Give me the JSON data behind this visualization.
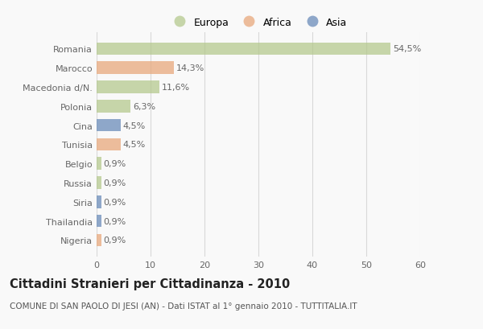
{
  "categories": [
    "Romania",
    "Marocco",
    "Macedonia d/N.",
    "Polonia",
    "Cina",
    "Tunisia",
    "Belgio",
    "Russia",
    "Siria",
    "Thailandia",
    "Nigeria"
  ],
  "values": [
    54.5,
    14.3,
    11.6,
    6.3,
    4.5,
    4.5,
    0.9,
    0.9,
    0.9,
    0.9,
    0.9
  ],
  "labels": [
    "54,5%",
    "14,3%",
    "11,6%",
    "6,3%",
    "4,5%",
    "4,5%",
    "0,9%",
    "0,9%",
    "0,9%",
    "0,9%",
    "0,9%"
  ],
  "colors": [
    "#b5c98e",
    "#e8a87c",
    "#b5c98e",
    "#b5c98e",
    "#6b8cba",
    "#e8a87c",
    "#b5c98e",
    "#b5c98e",
    "#6b8cba",
    "#6b8cba",
    "#e8a87c"
  ],
  "legend_labels": [
    "Europa",
    "Africa",
    "Asia"
  ],
  "legend_colors": [
    "#b5c98e",
    "#e8a87c",
    "#6b8cba"
  ],
  "title": "Cittadini Stranieri per Cittadinanza - 2010",
  "subtitle": "COMUNE DI SAN PAOLO DI JESI (AN) - Dati ISTAT al 1° gennaio 2010 - TUTTITALIA.IT",
  "xlim": [
    0,
    60
  ],
  "xticks": [
    0,
    10,
    20,
    30,
    40,
    50,
    60
  ],
  "bg_color": "#f9f9f9",
  "grid_color": "#d8d8d8",
  "bar_height": 0.65,
  "label_fontsize": 8,
  "tick_fontsize": 8,
  "title_fontsize": 10.5,
  "subtitle_fontsize": 7.5,
  "legend_fontsize": 9
}
